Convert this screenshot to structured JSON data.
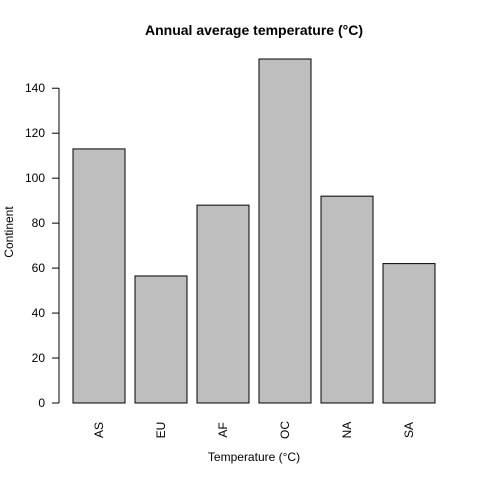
{
  "chart_data": {
    "type": "bar",
    "title": "Annual average temperature (°C)",
    "xlabel": "Temperature (°C)",
    "ylabel": "Continent",
    "categories": [
      "AS",
      "EU",
      "AF",
      "OC",
      "NA",
      "SA"
    ],
    "values": [
      113,
      56.5,
      88,
      153,
      92,
      62
    ],
    "yticks": [
      0,
      20,
      40,
      60,
      80,
      100,
      120,
      140
    ],
    "ylim": [
      0,
      153
    ],
    "grid": false,
    "legend": "none",
    "bar_color": "#bebebe",
    "x_tick_rotation": "vertical"
  }
}
